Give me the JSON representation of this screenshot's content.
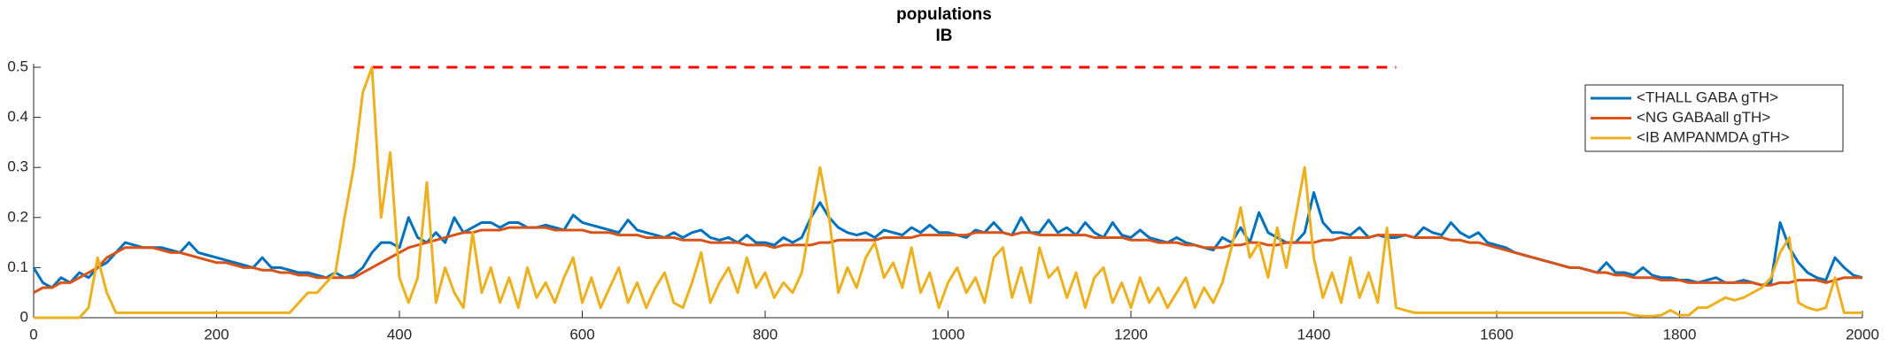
{
  "chart_data": {
    "type": "line",
    "title": "populations",
    "subtitle": "IB",
    "x": [
      0,
      10,
      20,
      30,
      40,
      50,
      60,
      70,
      80,
      90,
      100,
      110,
      120,
      130,
      140,
      150,
      160,
      170,
      180,
      190,
      200,
      210,
      220,
      230,
      240,
      250,
      260,
      270,
      280,
      290,
      300,
      310,
      320,
      330,
      340,
      350,
      360,
      370,
      380,
      390,
      400,
      410,
      420,
      430,
      440,
      450,
      460,
      470,
      480,
      490,
      500,
      510,
      520,
      530,
      540,
      550,
      560,
      570,
      580,
      590,
      600,
      610,
      620,
      630,
      640,
      650,
      660,
      670,
      680,
      690,
      700,
      710,
      720,
      730,
      740,
      750,
      760,
      770,
      780,
      790,
      800,
      810,
      820,
      830,
      840,
      850,
      860,
      870,
      880,
      890,
      900,
      910,
      920,
      930,
      940,
      950,
      960,
      970,
      980,
      990,
      1000,
      1010,
      1020,
      1030,
      1040,
      1050,
      1060,
      1070,
      1080,
      1090,
      1100,
      1110,
      1120,
      1130,
      1140,
      1150,
      1160,
      1170,
      1180,
      1190,
      1200,
      1210,
      1220,
      1230,
      1240,
      1250,
      1260,
      1270,
      1280,
      1290,
      1300,
      1310,
      1320,
      1330,
      1340,
      1350,
      1360,
      1370,
      1380,
      1390,
      1400,
      1410,
      1420,
      1430,
      1440,
      1450,
      1460,
      1470,
      1480,
      1490,
      1500,
      1510,
      1520,
      1530,
      1540,
      1550,
      1560,
      1570,
      1580,
      1590,
      1600,
      1610,
      1620,
      1630,
      1640,
      1650,
      1660,
      1670,
      1680,
      1690,
      1700,
      1710,
      1720,
      1730,
      1740,
      1750,
      1760,
      1770,
      1780,
      1790,
      1800,
      1810,
      1820,
      1830,
      1840,
      1850,
      1860,
      1870,
      1880,
      1890,
      1900,
      1910,
      1920,
      1930,
      1940,
      1950,
      1960,
      1970,
      1980,
      1990,
      2000
    ],
    "series": [
      {
        "name": "<THALL GABA gTH>",
        "color": "#0072bd",
        "values": [
          0.1,
          0.07,
          0.06,
          0.08,
          0.07,
          0.09,
          0.08,
          0.1,
          0.11,
          0.13,
          0.15,
          0.145,
          0.14,
          0.14,
          0.14,
          0.135,
          0.13,
          0.15,
          0.13,
          0.125,
          0.12,
          0.115,
          0.11,
          0.105,
          0.1,
          0.12,
          0.1,
          0.1,
          0.095,
          0.09,
          0.09,
          0.085,
          0.08,
          0.09,
          0.08,
          0.085,
          0.1,
          0.13,
          0.15,
          0.15,
          0.14,
          0.2,
          0.16,
          0.15,
          0.17,
          0.15,
          0.2,
          0.17,
          0.18,
          0.19,
          0.19,
          0.18,
          0.19,
          0.19,
          0.18,
          0.18,
          0.185,
          0.18,
          0.175,
          0.205,
          0.19,
          0.185,
          0.18,
          0.175,
          0.17,
          0.195,
          0.175,
          0.17,
          0.165,
          0.16,
          0.17,
          0.16,
          0.17,
          0.175,
          0.16,
          0.155,
          0.16,
          0.15,
          0.165,
          0.15,
          0.15,
          0.145,
          0.16,
          0.15,
          0.16,
          0.2,
          0.23,
          0.2,
          0.18,
          0.17,
          0.165,
          0.17,
          0.16,
          0.175,
          0.17,
          0.165,
          0.18,
          0.17,
          0.185,
          0.17,
          0.17,
          0.165,
          0.16,
          0.175,
          0.17,
          0.19,
          0.17,
          0.165,
          0.2,
          0.17,
          0.17,
          0.195,
          0.17,
          0.18,
          0.165,
          0.19,
          0.17,
          0.16,
          0.19,
          0.165,
          0.16,
          0.175,
          0.16,
          0.155,
          0.15,
          0.16,
          0.15,
          0.145,
          0.14,
          0.135,
          0.16,
          0.15,
          0.18,
          0.15,
          0.21,
          0.17,
          0.16,
          0.15,
          0.15,
          0.17,
          0.25,
          0.19,
          0.17,
          0.17,
          0.165,
          0.18,
          0.16,
          0.165,
          0.16,
          0.16,
          0.165,
          0.16,
          0.18,
          0.17,
          0.165,
          0.19,
          0.17,
          0.16,
          0.17,
          0.15,
          0.145,
          0.14,
          0.13,
          0.125,
          0.12,
          0.115,
          0.11,
          0.105,
          0.1,
          0.1,
          0.095,
          0.09,
          0.11,
          0.09,
          0.09,
          0.085,
          0.1,
          0.085,
          0.08,
          0.08,
          0.075,
          0.075,
          0.07,
          0.075,
          0.08,
          0.07,
          0.07,
          0.075,
          0.07,
          0.065,
          0.07,
          0.19,
          0.14,
          0.11,
          0.09,
          0.08,
          0.075,
          0.12,
          0.1,
          0.085,
          0.08
        ]
      },
      {
        "name": "<NG GABAall gTH>",
        "color": "#d95319",
        "values": [
          0.05,
          0.06,
          0.06,
          0.07,
          0.07,
          0.08,
          0.09,
          0.1,
          0.12,
          0.13,
          0.14,
          0.14,
          0.14,
          0.14,
          0.135,
          0.13,
          0.13,
          0.125,
          0.12,
          0.115,
          0.11,
          0.11,
          0.105,
          0.1,
          0.1,
          0.095,
          0.095,
          0.09,
          0.09,
          0.085,
          0.085,
          0.08,
          0.08,
          0.08,
          0.08,
          0.08,
          0.09,
          0.1,
          0.11,
          0.12,
          0.13,
          0.14,
          0.145,
          0.15,
          0.155,
          0.16,
          0.165,
          0.17,
          0.17,
          0.175,
          0.175,
          0.175,
          0.18,
          0.18,
          0.18,
          0.18,
          0.18,
          0.175,
          0.175,
          0.175,
          0.175,
          0.17,
          0.17,
          0.17,
          0.165,
          0.165,
          0.165,
          0.16,
          0.16,
          0.16,
          0.16,
          0.155,
          0.155,
          0.155,
          0.15,
          0.15,
          0.15,
          0.15,
          0.145,
          0.145,
          0.145,
          0.14,
          0.145,
          0.145,
          0.145,
          0.145,
          0.15,
          0.15,
          0.155,
          0.155,
          0.155,
          0.155,
          0.155,
          0.16,
          0.16,
          0.16,
          0.16,
          0.165,
          0.165,
          0.165,
          0.165,
          0.165,
          0.165,
          0.17,
          0.17,
          0.17,
          0.17,
          0.165,
          0.17,
          0.17,
          0.165,
          0.165,
          0.165,
          0.165,
          0.165,
          0.165,
          0.16,
          0.16,
          0.16,
          0.16,
          0.155,
          0.155,
          0.155,
          0.15,
          0.15,
          0.15,
          0.145,
          0.145,
          0.14,
          0.14,
          0.14,
          0.145,
          0.145,
          0.15,
          0.15,
          0.145,
          0.145,
          0.15,
          0.15,
          0.15,
          0.15,
          0.155,
          0.155,
          0.16,
          0.16,
          0.16,
          0.16,
          0.165,
          0.165,
          0.165,
          0.165,
          0.16,
          0.16,
          0.16,
          0.16,
          0.155,
          0.155,
          0.15,
          0.15,
          0.145,
          0.14,
          0.135,
          0.13,
          0.125,
          0.12,
          0.115,
          0.11,
          0.105,
          0.1,
          0.1,
          0.095,
          0.09,
          0.09,
          0.085,
          0.085,
          0.08,
          0.08,
          0.08,
          0.075,
          0.075,
          0.075,
          0.07,
          0.07,
          0.07,
          0.07,
          0.07,
          0.07,
          0.07,
          0.07,
          0.065,
          0.065,
          0.07,
          0.07,
          0.075,
          0.075,
          0.075,
          0.07,
          0.075,
          0.08,
          0.08,
          0.08
        ]
      },
      {
        "name": "<IB AMPANMDA gTH>",
        "color": "#edb120",
        "values": [
          0,
          0,
          0,
          0,
          0,
          0,
          0.02,
          0.12,
          0.05,
          0.01,
          0.01,
          0.01,
          0.01,
          0.01,
          0.01,
          0.01,
          0.01,
          0.01,
          0.01,
          0.01,
          0.01,
          0.01,
          0.01,
          0.01,
          0.01,
          0.01,
          0.01,
          0.01,
          0.01,
          0.03,
          0.05,
          0.05,
          0.07,
          0.09,
          0.2,
          0.3,
          0.45,
          0.5,
          0.2,
          0.33,
          0.08,
          0.03,
          0.08,
          0.27,
          0.03,
          0.1,
          0.05,
          0.02,
          0.17,
          0.05,
          0.1,
          0.03,
          0.08,
          0.02,
          0.1,
          0.04,
          0.07,
          0.03,
          0.08,
          0.12,
          0.03,
          0.08,
          0.02,
          0.06,
          0.1,
          0.03,
          0.07,
          0.02,
          0.06,
          0.09,
          0.03,
          0.02,
          0.07,
          0.13,
          0.03,
          0.07,
          0.1,
          0.05,
          0.12,
          0.06,
          0.09,
          0.04,
          0.07,
          0.05,
          0.09,
          0.2,
          0.3,
          0.2,
          0.05,
          0.1,
          0.06,
          0.12,
          0.15,
          0.08,
          0.11,
          0.06,
          0.14,
          0.05,
          0.09,
          0.02,
          0.07,
          0.1,
          0.05,
          0.08,
          0.03,
          0.12,
          0.14,
          0.04,
          0.1,
          0.03,
          0.14,
          0.08,
          0.1,
          0.04,
          0.09,
          0.02,
          0.08,
          0.1,
          0.03,
          0.07,
          0.02,
          0.08,
          0.03,
          0.06,
          0.02,
          0.05,
          0.08,
          0.02,
          0.06,
          0.03,
          0.07,
          0.14,
          0.22,
          0.12,
          0.15,
          0.08,
          0.18,
          0.1,
          0.2,
          0.3,
          0.12,
          0.04,
          0.09,
          0.03,
          0.12,
          0.04,
          0.09,
          0.03,
          0.18,
          0.02,
          0.015,
          0.01,
          0.01,
          0.01,
          0.01,
          0.01,
          0.01,
          0.01,
          0.01,
          0.01,
          0.01,
          0.01,
          0.01,
          0.01,
          0.01,
          0.01,
          0.01,
          0.01,
          0.01,
          0.01,
          0.01,
          0.01,
          0.01,
          0.01,
          0.01,
          0.005,
          0.003,
          0.003,
          0.005,
          0.015,
          0.005,
          0.005,
          0.02,
          0.02,
          0.03,
          0.04,
          0.035,
          0.04,
          0.05,
          0.06,
          0.08,
          0.13,
          0.16,
          0.03,
          0.02,
          0.015,
          0.02,
          0.08,
          0.01,
          0.01,
          0.01
        ]
      }
    ],
    "reference_line": {
      "y": 0.5,
      "x": [
        350,
        1490
      ],
      "color": "#ff0000"
    },
    "xlim": [
      0,
      2000
    ],
    "xticks": [
      0,
      200,
      400,
      600,
      800,
      1000,
      1200,
      1400,
      1600,
      1800,
      2000
    ],
    "ylim": [
      0,
      0.5
    ],
    "yticks": [
      0,
      0.1,
      0.2,
      0.3,
      0.4,
      0.5
    ],
    "legend": "upper right"
  }
}
